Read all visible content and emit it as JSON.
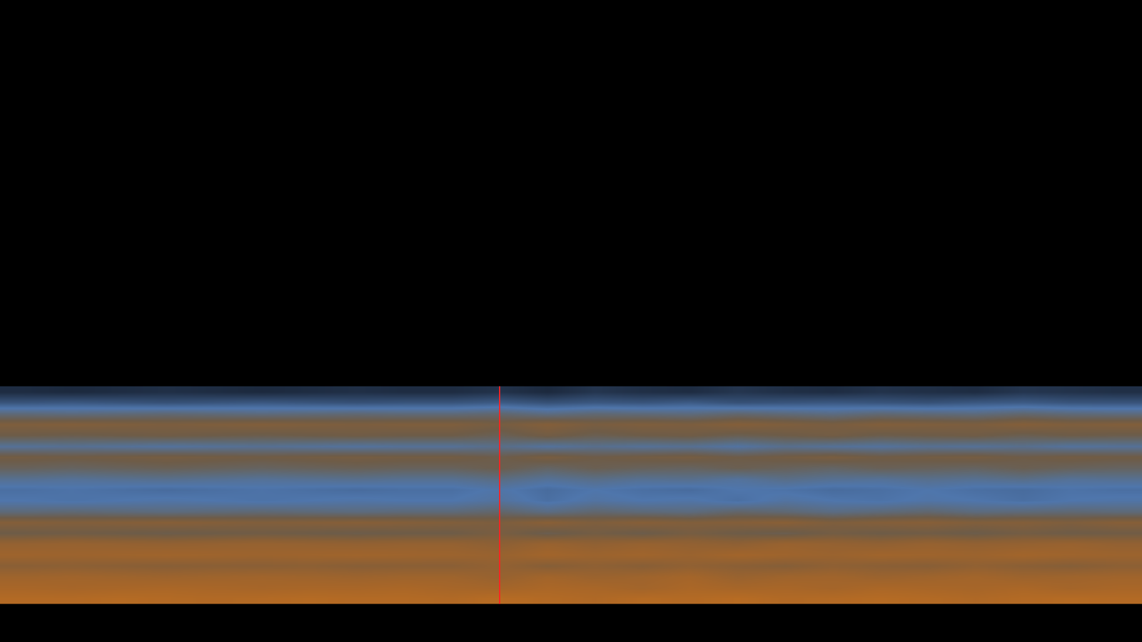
{
  "chart_data": {
    "type": "heatmap",
    "x": [
      0,
      1,
      2,
      3,
      4,
      5,
      6,
      7,
      8,
      9,
      10,
      11,
      12,
      13,
      14,
      15,
      16,
      17,
      18,
      19,
      20,
      21,
      22,
      23
    ],
    "y": [
      0,
      1,
      2,
      3,
      4,
      5,
      6,
      7,
      8,
      9,
      10,
      11,
      12,
      13,
      14,
      15,
      16,
      17,
      18,
      19
    ],
    "xlim": [
      -0.5,
      23.5
    ],
    "ylim": [
      -4,
      55
    ],
    "zlim": [
      0,
      10
    ],
    "tick_labels": false,
    "grid": false,
    "cursor": {
      "x": 10,
      "color": "#ff2020"
    },
    "cells": [
      [
        9,
        9,
        9.1,
        9,
        8.9,
        9,
        9.1,
        9,
        9,
        8.9,
        9.2,
        9,
        8.8,
        9.1,
        9,
        9.2,
        8.9,
        9,
        9.1,
        9,
        8.8,
        9,
        9.1,
        9
      ],
      [
        8.5,
        8.4,
        8.5,
        8.6,
        8.5,
        8.4,
        8.5,
        8.5,
        8.6,
        8.4,
        8.3,
        8.6,
        8.5,
        8.2,
        8.6,
        8.4,
        8.5,
        8.3,
        8.6,
        8.5,
        8.4,
        8.6,
        8.3,
        8.5
      ],
      [
        8,
        8.1,
        8,
        7.9,
        8,
        8.1,
        8,
        7.9,
        8,
        8,
        7.6,
        8.2,
        7.8,
        8,
        8.3,
        7.7,
        8,
        8.1,
        7.8,
        8,
        8.2,
        7.9,
        8,
        8.1
      ],
      [
        7,
        7.1,
        7,
        6.9,
        7,
        7,
        7.1,
        6.9,
        7,
        7,
        7.4,
        6.8,
        7.2,
        6.9,
        7.3,
        7,
        6.8,
        7.2,
        7,
        6.9,
        7.3,
        7,
        6.8,
        7.1
      ],
      [
        8,
        7.9,
        8,
        8.1,
        8,
        7.9,
        8,
        8.1,
        8,
        7.9,
        7.7,
        8.2,
        7.9,
        8.1,
        7.8,
        8.2,
        8,
        7.8,
        8.1,
        8,
        7.9,
        8.2,
        8,
        7.9
      ],
      [
        7.5,
        7.6,
        7.5,
        7.4,
        7.5,
        7.6,
        7.5,
        7.4,
        7.5,
        7.5,
        7.1,
        7.7,
        7.3,
        7.6,
        7.4,
        7.2,
        7.7,
        7.5,
        7.3,
        7.6,
        7.4,
        7.5,
        7.7,
        7.4
      ],
      [
        6,
        6.1,
        6,
        5.9,
        6,
        6.1,
        6,
        5.9,
        6,
        6,
        6.4,
        5.8,
        6.2,
        5.9,
        6.3,
        6,
        5.8,
        6.2,
        6,
        6.1,
        5.9,
        6.2,
        6,
        6.1
      ],
      [
        6.8,
        6.7,
        6.8,
        6.9,
        6.8,
        6.7,
        6.8,
        6.9,
        6.8,
        6.7,
        6.5,
        7,
        6.6,
        6.9,
        6.7,
        6.8,
        7,
        6.6,
        6.8,
        6.9,
        6.7,
        6.8,
        6.6,
        6.9
      ],
      [
        5,
        5.1,
        5,
        4.9,
        5,
        5.1,
        5,
        4.9,
        5,
        5,
        5.3,
        4.8,
        5.2,
        5,
        4.9,
        5.3,
        5.1,
        4.8,
        5,
        5.2,
        4.9,
        5,
        5.1,
        5
      ],
      [
        4,
        3.9,
        4,
        4.1,
        4,
        3.9,
        4,
        4.1,
        4,
        4,
        4.3,
        3.8,
        4.2,
        4,
        4.1,
        3.8,
        4.2,
        4,
        3.9,
        4.1,
        4,
        3.8,
        4,
        4.1
      ],
      [
        3.8,
        3.9,
        3.8,
        3.7,
        3.8,
        3.9,
        3.8,
        3.7,
        3.8,
        3.8,
        4.1,
        3.7,
        4,
        3.8,
        3.7,
        4,
        3.9,
        3.7,
        3.8,
        4,
        3.8,
        3.7,
        3.9,
        3.8
      ],
      [
        4.5,
        4.4,
        4.5,
        4.6,
        4.5,
        4.4,
        4.5,
        4.6,
        4.5,
        4.5,
        4.8,
        4.4,
        4.7,
        4.5,
        4.6,
        4.3,
        4.7,
        4.5,
        4.4,
        4.6,
        4.5,
        4.7,
        4.4,
        4.5
      ],
      [
        5.6,
        5.5,
        5.6,
        5.7,
        5.6,
        5.5,
        5.6,
        5.7,
        5.6,
        5.6,
        5.9,
        5.4,
        5.8,
        5.6,
        5.5,
        5.8,
        5.6,
        5.4,
        5.7,
        5.6,
        5.5,
        5.8,
        5.6,
        5.5
      ],
      [
        6.2,
        6.1,
        6.2,
        6.3,
        6.2,
        6.1,
        6.2,
        6.3,
        6.2,
        6.2,
        5.9,
        6.4,
        6,
        6.2,
        6.3,
        6,
        6.2,
        6.4,
        6.1,
        6.2,
        6.3,
        6,
        6.2,
        6.1
      ],
      [
        4.4,
        4.5,
        4.4,
        4.3,
        4.4,
        4.5,
        4.4,
        4.3,
        4.4,
        4.4,
        4.7,
        4.3,
        4.6,
        4.4,
        4.5,
        4.2,
        4.6,
        4.4,
        4.3,
        4.5,
        4.4,
        4.6,
        4.3,
        4.4
      ],
      [
        6,
        5.9,
        6,
        6.1,
        6,
        5.9,
        6,
        6.1,
        6,
        6,
        5.7,
        6.2,
        5.8,
        6,
        6.1,
        5.8,
        6,
        6.2,
        5.9,
        6,
        6.1,
        5.8,
        6,
        5.9
      ],
      [
        6.6,
        6.7,
        6.6,
        6.5,
        6.6,
        6.7,
        6.6,
        6.5,
        6.6,
        6.6,
        6.3,
        6.8,
        6.4,
        6.6,
        6.5,
        6.8,
        6.6,
        6.4,
        6.7,
        6.6,
        6.5,
        6.8,
        6.6,
        6.7
      ],
      [
        5,
        4.9,
        5,
        5.1,
        5,
        4.9,
        5,
        5.1,
        5,
        5,
        5.2,
        4.8,
        5.1,
        5,
        4.9,
        5.2,
        5,
        4.8,
        5.1,
        5,
        4.9,
        5.2,
        5,
        4.9
      ],
      [
        3,
        3.1,
        3,
        2.9,
        3,
        3.1,
        3,
        2.9,
        3,
        3,
        3.2,
        2.9,
        3.1,
        3,
        3.2,
        2.9,
        3,
        3.1,
        3,
        2.9,
        3.1,
        3.2,
        3,
        3
      ],
      [
        1.8,
        1.7,
        1.8,
        1.9,
        1.8,
        1.7,
        1.8,
        1.9,
        1.8,
        1.8,
        2,
        1.7,
        2.1,
        1.9,
        1.8,
        2.1,
        1.9,
        1.8,
        2,
        1.9,
        1.8,
        2.1,
        2,
        1.9
      ]
    ]
  }
}
